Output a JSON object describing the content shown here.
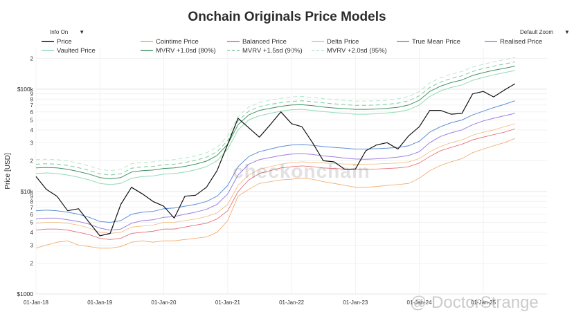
{
  "title": "Onchain Originals Price Models",
  "controls": {
    "info_label": "Info On",
    "zoom_label": "Default Zoom",
    "arrow": "▼"
  },
  "watermark": "checkonchain",
  "credit": "@ DoctorStrange",
  "chart_data": {
    "type": "line",
    "title": "Onchain Originals Price Models",
    "ylabel": "Price [USD]",
    "yscale": "log",
    "ylim": [
      1000,
      250000
    ],
    "xlim": [
      "2018-01-01",
      "2025-12-31"
    ],
    "y_major_ticks": [
      {
        "v": 1000,
        "label": "$1000"
      },
      {
        "v": 10000,
        "label": "$10k"
      },
      {
        "v": 100000,
        "label": "$100k"
      }
    ],
    "y_minor_ticks": [
      {
        "v": 2000,
        "label": "2"
      },
      {
        "v": 3000,
        "label": "3"
      },
      {
        "v": 4000,
        "label": "4"
      },
      {
        "v": 5000,
        "label": "5"
      },
      {
        "v": 6000,
        "label": "6"
      },
      {
        "v": 7000,
        "label": "7"
      },
      {
        "v": 8000,
        "label": "8"
      },
      {
        "v": 9000,
        "label": "9"
      },
      {
        "v": 20000,
        "label": "2"
      },
      {
        "v": 30000,
        "label": "3"
      },
      {
        "v": 40000,
        "label": "4"
      },
      {
        "v": 50000,
        "label": "5"
      },
      {
        "v": 60000,
        "label": "6"
      },
      {
        "v": 70000,
        "label": "7"
      },
      {
        "v": 80000,
        "label": "8"
      },
      {
        "v": 90000,
        "label": "9"
      },
      {
        "v": 200000,
        "label": "2"
      }
    ],
    "x_ticks": [
      {
        "date": "2018-01-01",
        "label": "01-Jan-18"
      },
      {
        "date": "2019-01-01",
        "label": "01-Jan-19"
      },
      {
        "date": "2020-01-01",
        "label": "01-Jan-20"
      },
      {
        "date": "2021-01-01",
        "label": "01-Jan-21"
      },
      {
        "date": "2022-01-01",
        "label": "01-Jan-22"
      },
      {
        "date": "2023-01-01",
        "label": "01-Jan-23"
      },
      {
        "date": "2024-01-01",
        "label": "01-Jan-24"
      },
      {
        "date": "2025-01-01",
        "label": "01-Jan-25"
      }
    ],
    "x": [
      "2018-01-01",
      "2018-03-01",
      "2018-05-01",
      "2018-07-01",
      "2018-09-01",
      "2018-11-01",
      "2019-01-01",
      "2019-03-01",
      "2019-05-01",
      "2019-07-01",
      "2019-09-01",
      "2019-11-01",
      "2020-01-01",
      "2020-03-01",
      "2020-05-01",
      "2020-07-01",
      "2020-09-01",
      "2020-11-01",
      "2021-01-01",
      "2021-03-01",
      "2021-05-01",
      "2021-07-01",
      "2021-09-01",
      "2021-11-01",
      "2022-01-01",
      "2022-03-01",
      "2022-05-01",
      "2022-07-01",
      "2022-09-01",
      "2022-11-01",
      "2023-01-01",
      "2023-03-01",
      "2023-05-01",
      "2023-07-01",
      "2023-09-01",
      "2023-11-01",
      "2024-01-01",
      "2024-03-01",
      "2024-05-01",
      "2024-07-01",
      "2024-09-01",
      "2024-11-01",
      "2025-01-01",
      "2025-03-01",
      "2025-05-01",
      "2025-07-01"
    ],
    "series": [
      {
        "name": "Price",
        "color": "#111111",
        "width": 1.2,
        "dash": "",
        "values": [
          14000,
          10500,
          9000,
          6500,
          6800,
          5000,
          3700,
          3900,
          7500,
          11000,
          9500,
          8000,
          7200,
          5500,
          9000,
          9200,
          11000,
          16000,
          29000,
          52000,
          42000,
          34000,
          45000,
          60000,
          46000,
          43000,
          30000,
          20000,
          19500,
          16500,
          16600,
          25000,
          28500,
          30000,
          26000,
          35000,
          43000,
          62000,
          62000,
          57000,
          58000,
          90000,
          95000,
          84000,
          98000,
          113000
        ]
      },
      {
        "name": "Cointime Price",
        "color": "#f2a35e",
        "width": 0.8,
        "dash": "",
        "values": [
          2800,
          3000,
          3200,
          3300,
          3000,
          2900,
          2800,
          2800,
          2900,
          3200,
          3300,
          3200,
          3300,
          3300,
          3400,
          3500,
          3600,
          4000,
          5200,
          9000,
          10500,
          12000,
          12500,
          13000,
          13200,
          13500,
          13200,
          12500,
          12000,
          11500,
          11000,
          11000,
          11200,
          11500,
          11700,
          12000,
          13500,
          16000,
          18000,
          19500,
          21000,
          24000,
          26000,
          28000,
          30000,
          33000
        ]
      },
      {
        "name": "Balanced Price",
        "color": "#e6616e",
        "width": 0.8,
        "dash": "",
        "values": [
          4200,
          4300,
          4300,
          4200,
          4000,
          3800,
          3500,
          3400,
          3500,
          3900,
          4000,
          4100,
          4300,
          4300,
          4500,
          4700,
          4900,
          5400,
          6500,
          10000,
          13000,
          15000,
          16000,
          17000,
          17500,
          17800,
          17500,
          17000,
          16800,
          16600,
          16500,
          16500,
          16600,
          16800,
          17000,
          17500,
          19000,
          22000,
          25000,
          27000,
          29000,
          32000,
          34000,
          36000,
          38000,
          41000
        ]
      },
      {
        "name": "Delta Price",
        "color": "#f2b978",
        "width": 0.8,
        "dash": "",
        "values": [
          4900,
          5000,
          5000,
          4900,
          4700,
          4400,
          4000,
          3900,
          4000,
          4500,
          4600,
          4700,
          5000,
          5000,
          5200,
          5400,
          5700,
          6200,
          7500,
          11500,
          14500,
          16500,
          17500,
          18500,
          19200,
          19500,
          19300,
          19000,
          18800,
          18600,
          18500,
          18500,
          18600,
          18800,
          19000,
          19500,
          21000,
          24500,
          27500,
          30000,
          32000,
          35500,
          38000,
          40000,
          43000,
          46000
        ]
      },
      {
        "name": "True Mean Price",
        "color": "#5b8ed6",
        "width": 1.0,
        "dash": "",
        "values": [
          6500,
          6600,
          6500,
          6300,
          6000,
          5600,
          5100,
          5000,
          5200,
          6000,
          6300,
          6400,
          6800,
          6900,
          7200,
          7500,
          8000,
          9000,
          11500,
          17500,
          22000,
          24500,
          26000,
          27500,
          28500,
          28800,
          28300,
          27500,
          27000,
          26500,
          26000,
          26000,
          26200,
          26500,
          27000,
          28000,
          31000,
          38000,
          43000,
          47000,
          50000,
          56000,
          61000,
          66000,
          71000,
          77000
        ]
      },
      {
        "name": "Realised Price",
        "color": "#9b7fe0",
        "width": 1.0,
        "dash": "",
        "values": [
          5400,
          5500,
          5500,
          5300,
          5100,
          4800,
          4400,
          4200,
          4300,
          4900,
          5200,
          5300,
          5600,
          5700,
          6000,
          6300,
          6700,
          7500,
          9500,
          14500,
          18500,
          20500,
          21500,
          22500,
          23200,
          23500,
          23000,
          22300,
          21800,
          21200,
          20800,
          20700,
          20900,
          21200,
          21700,
          22500,
          24500,
          30000,
          34500,
          37500,
          40000,
          45000,
          49000,
          52000,
          55000,
          58000
        ]
      },
      {
        "name": "Vaulted Price",
        "color": "#8fdcb4",
        "width": 1.0,
        "dash": "",
        "values": [
          15000,
          15200,
          15000,
          14500,
          13800,
          13000,
          12000,
          11700,
          12000,
          13500,
          14000,
          14200,
          14800,
          15000,
          15500,
          16300,
          17500,
          20000,
          26000,
          40000,
          50000,
          55000,
          58000,
          61000,
          63000,
          63500,
          62000,
          60500,
          59000,
          58000,
          57000,
          57000,
          57500,
          58500,
          60000,
          63000,
          70000,
          85000,
          96000,
          104000,
          110000,
          122000,
          130000,
          138000,
          145000,
          152000
        ]
      },
      {
        "name": "MVRV +1.0sd (80%)",
        "color": "#3f9462",
        "width": 1.0,
        "dash": "",
        "values": [
          17000,
          17200,
          17000,
          16500,
          15700,
          14800,
          13700,
          13300,
          13700,
          15500,
          16000,
          16200,
          16800,
          17000,
          17600,
          18500,
          19800,
          22500,
          29000,
          45000,
          56000,
          62000,
          65000,
          68000,
          70000,
          70500,
          69000,
          67000,
          65500,
          64500,
          63500,
          63500,
          64000,
          65000,
          66500,
          70000,
          78000,
          95000,
          107000,
          116000,
          123000,
          136000,
          145000,
          153000,
          160000,
          168000
        ]
      },
      {
        "name": "MVRV +1.5sd (90%)",
        "color": "#7cc9a0",
        "width": 1.0,
        "dash": "6,4",
        "values": [
          18500,
          18700,
          18500,
          18000,
          17100,
          16100,
          14900,
          14500,
          14900,
          16900,
          17400,
          17600,
          18300,
          18500,
          19200,
          20200,
          21600,
          24500,
          31500,
          49000,
          61000,
          67500,
          71000,
          74000,
          76000,
          77000,
          75500,
          73500,
          72000,
          70500,
          69500,
          69500,
          70000,
          71000,
          73000,
          77000,
          86000,
          104000,
          117000,
          127000,
          135000,
          149000,
          159000,
          168000,
          176000,
          185000
        ]
      },
      {
        "name": "MVRV +2.0sd (95%)",
        "color": "#b7e8cc",
        "width": 1.0,
        "dash": "6,4",
        "values": [
          20500,
          20700,
          20500,
          19900,
          18900,
          17800,
          16500,
          16000,
          16500,
          18700,
          19300,
          19500,
          20200,
          20500,
          21200,
          22300,
          23900,
          27000,
          35000,
          54000,
          67000,
          74000,
          78000,
          81500,
          84000,
          85000,
          83000,
          81000,
          79000,
          77500,
          76500,
          76500,
          77000,
          78000,
          80500,
          85000,
          95000,
          115000,
          129000,
          140000,
          149000,
          164000,
          175000,
          185000,
          194000,
          204000
        ]
      }
    ]
  }
}
